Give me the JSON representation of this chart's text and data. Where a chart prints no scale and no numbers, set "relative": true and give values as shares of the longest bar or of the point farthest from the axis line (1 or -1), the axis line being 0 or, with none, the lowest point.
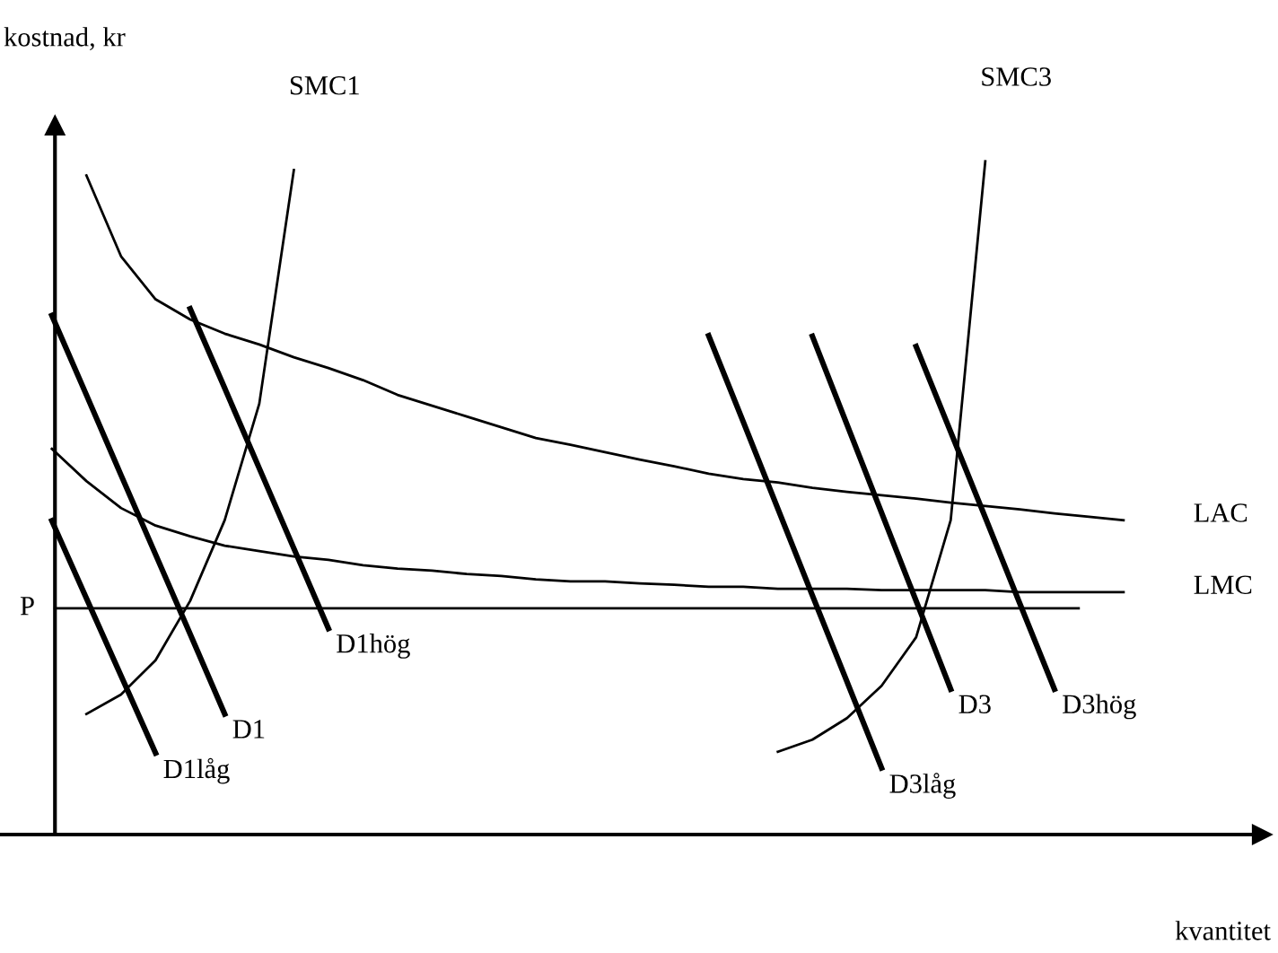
{
  "chart_data": {
    "type": "line",
    "relative": true,
    "ylabel": "kostnad, kr",
    "xlabel": "kvantitet",
    "ylim": [
      0,
      1.053
    ],
    "legend": false,
    "marker": "none",
    "line_style": "solid",
    "categories": [
      null,
      null,
      null,
      null,
      null,
      null,
      null,
      null,
      null,
      null,
      null,
      null,
      null,
      null,
      null,
      null,
      null,
      null,
      null,
      null,
      null,
      null,
      null,
      null,
      null,
      null,
      null,
      null,
      null,
      null,
      null,
      null,
      null,
      null,
      null,
      null
    ],
    "ref_lines": [
      {
        "axis": "y",
        "value": 0.336,
        "label": "P",
        "color": "#000000"
      }
    ],
    "series": [
      {
        "name": "LAC",
        "color": "#000000",
        "values": [
          null,
          null,
          0.979,
          0.859,
          0.795,
          0.765,
          0.744,
          0.728,
          0.709,
          0.693,
          0.675,
          0.653,
          0.637,
          0.621,
          0.605,
          0.589,
          0.579,
          0.568,
          0.557,
          0.547,
          0.536,
          0.528,
          0.523,
          0.515,
          0.509,
          0.504,
          0.499,
          0.493,
          0.488,
          0.483,
          0.477,
          0.472,
          0.467,
          null,
          null,
          null
        ]
      },
      {
        "name": "LMC",
        "color": "#000000",
        "values": [
          null,
          0.573,
          0.525,
          0.485,
          0.459,
          0.443,
          0.429,
          0.421,
          0.413,
          0.408,
          0.4,
          0.395,
          0.392,
          0.387,
          0.384,
          0.379,
          0.376,
          0.376,
          0.373,
          0.371,
          0.368,
          0.368,
          0.365,
          0.365,
          0.365,
          0.363,
          0.363,
          0.363,
          0.363,
          0.36,
          0.36,
          0.36,
          0.36,
          null,
          null,
          null
        ]
      },
      {
        "name": "SMC1",
        "color": "#000000",
        "values": [
          null,
          null,
          0.179,
          0.208,
          0.259,
          0.347,
          0.467,
          0.64,
          0.987,
          null,
          null,
          null,
          null,
          null,
          null,
          null,
          null,
          null,
          null,
          null,
          null,
          null,
          null,
          null,
          null,
          null,
          null,
          null,
          null,
          null,
          null,
          null,
          null,
          null,
          null,
          null
        ]
      },
      {
        "name": "SMC3",
        "color": "#000000",
        "values": [
          null,
          null,
          null,
          null,
          null,
          null,
          null,
          null,
          null,
          null,
          null,
          null,
          null,
          null,
          null,
          null,
          null,
          null,
          null,
          null,
          null,
          null,
          0.123,
          0.141,
          0.173,
          0.221,
          0.293,
          0.467,
          1.0,
          null,
          null,
          null,
          null,
          null,
          null,
          null
        ]
      },
      {
        "name": "D1låg",
        "color": "#000000",
        "values": [
          null,
          0.466,
          0.351,
          0.236,
          0.121,
          null,
          null,
          null,
          null,
          null,
          null,
          null,
          null,
          null,
          null,
          null,
          null,
          null,
          null,
          null,
          null,
          null,
          null,
          null,
          null,
          null,
          null,
          null,
          null,
          null,
          null,
          null,
          null,
          null,
          null,
          null
        ]
      },
      {
        "name": "D1",
        "color": "#000000",
        "values": [
          null,
          0.771,
          0.653,
          0.534,
          0.416,
          0.298,
          0.179,
          null,
          null,
          null,
          null,
          null,
          null,
          null,
          null,
          null,
          null,
          null,
          null,
          null,
          null,
          null,
          null,
          null,
          null,
          null,
          null,
          null,
          null,
          null,
          null,
          null,
          null,
          null,
          null,
          null
        ]
      },
      {
        "name": "D1hög",
        "color": "#000000",
        "values": [
          null,
          null,
          null,
          null,
          null,
          0.781,
          0.663,
          0.544,
          0.425,
          0.306,
          null,
          null,
          null,
          null,
          null,
          null,
          null,
          null,
          null,
          null,
          null,
          null,
          null,
          null,
          null,
          null,
          null,
          null,
          null,
          null,
          null,
          null,
          null,
          null,
          null,
          null
        ]
      },
      {
        "name": "D3låg",
        "color": "#000000",
        "values": [
          null,
          null,
          null,
          null,
          null,
          null,
          null,
          null,
          null,
          null,
          null,
          null,
          null,
          null,
          null,
          null,
          null,
          null,
          null,
          null,
          0.741,
          0.613,
          0.484,
          0.355,
          0.227,
          0.099,
          null,
          null,
          null,
          null,
          null,
          null,
          null,
          null,
          null,
          null
        ]
      },
      {
        "name": "D3",
        "color": "#000000",
        "values": [
          null,
          null,
          null,
          null,
          null,
          null,
          null,
          null,
          null,
          null,
          null,
          null,
          null,
          null,
          null,
          null,
          null,
          null,
          null,
          null,
          null,
          null,
          null,
          0.74,
          0.609,
          0.478,
          0.347,
          0.216,
          null,
          null,
          null,
          null,
          null,
          null,
          null,
          null
        ]
      },
      {
        "name": "D3hög",
        "color": "#000000",
        "values": [
          null,
          null,
          null,
          null,
          null,
          null,
          null,
          null,
          null,
          null,
          null,
          null,
          null,
          null,
          null,
          null,
          null,
          null,
          null,
          null,
          null,
          null,
          null,
          null,
          null,
          null,
          0.725,
          0.598,
          0.471,
          0.343,
          0.216,
          null,
          null,
          null,
          null,
          null
        ]
      }
    ]
  }
}
